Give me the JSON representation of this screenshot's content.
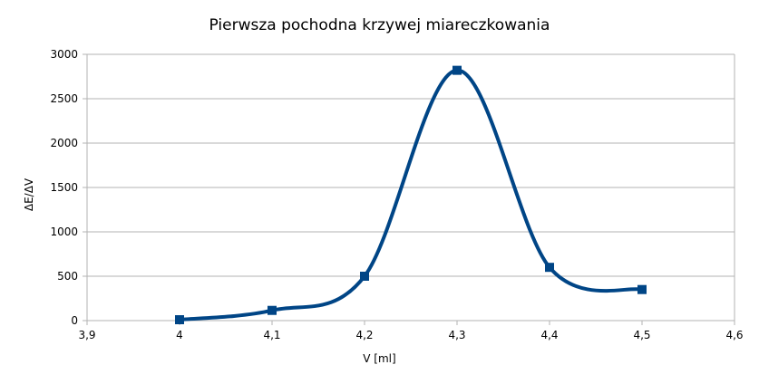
{
  "chart_data": {
    "type": "scatter",
    "title": "Pierwsza pochodna krzywej miareczkowania",
    "xlabel": "V [ml]",
    "ylabel": "ΔE/ΔV",
    "xlim": [
      3.9,
      4.6
    ],
    "ylim": [
      0,
      3000
    ],
    "x_ticks": [
      "3,9",
      "4",
      "4,1",
      "4,2",
      "4,3",
      "4,4",
      "4,5",
      "4,6"
    ],
    "y_ticks": [
      "0",
      "500",
      "1000",
      "1500",
      "2000",
      "2500",
      "3000"
    ],
    "grid": "horizontal",
    "smooth": true,
    "marker": "square",
    "series": [
      {
        "color": "#004586",
        "points": [
          {
            "x": 4.0,
            "y": 10
          },
          {
            "x": 4.1,
            "y": 115
          },
          {
            "x": 4.2,
            "y": 500
          },
          {
            "x": 4.3,
            "y": 2820
          },
          {
            "x": 4.4,
            "y": 600
          },
          {
            "x": 4.5,
            "y": 350
          }
        ]
      }
    ]
  }
}
